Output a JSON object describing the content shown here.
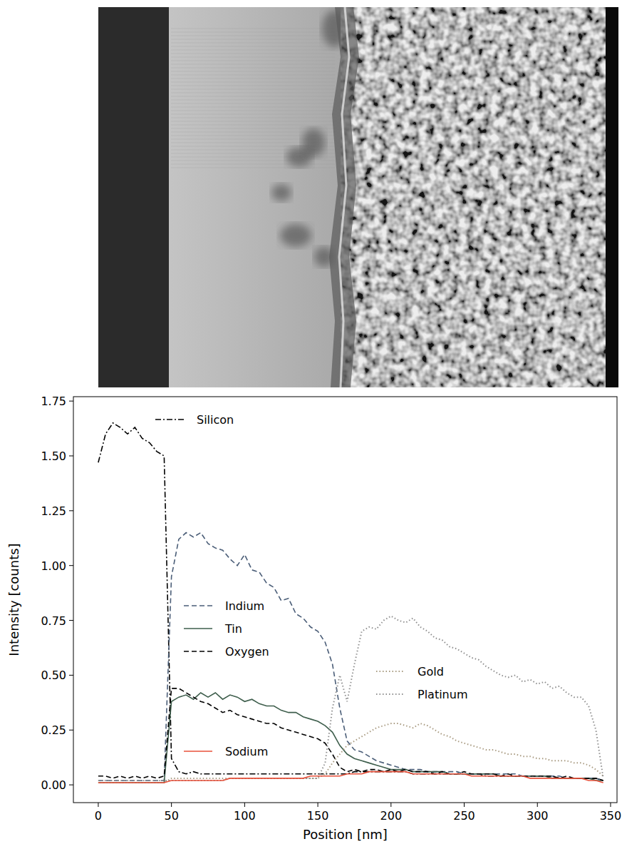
{
  "chart_data": {
    "type": "line",
    "x_label": "Position [nm]",
    "y_label": "Intensity [counts]",
    "xlim": [
      -17,
      354.4
    ],
    "ylim": [
      -0.081,
      1.77
    ],
    "xticks": [
      0,
      50,
      100,
      150,
      200,
      250,
      300,
      350
    ],
    "yticks": [
      {
        "value": 0,
        "label": "0.00"
      },
      {
        "value": 0.25,
        "label": "0.25"
      },
      {
        "value": 0.5,
        "label": "0.50"
      },
      {
        "value": 0.75,
        "label": "0.75"
      },
      {
        "value": 1.0,
        "label": "1.00"
      },
      {
        "value": 1.25,
        "label": "1.25"
      },
      {
        "value": 1.5,
        "label": "1.50"
      },
      {
        "value": 1.75,
        "label": "1.75"
      }
    ],
    "grid": false,
    "legend": "inside",
    "x": [
      0,
      5,
      10,
      15,
      20,
      25,
      30,
      35,
      40,
      45,
      50,
      55,
      60,
      65,
      70,
      75,
      80,
      85,
      90,
      95,
      100,
      105,
      110,
      115,
      120,
      125,
      130,
      135,
      140,
      145,
      150,
      155,
      160,
      165,
      170,
      175,
      180,
      185,
      190,
      195,
      200,
      205,
      210,
      215,
      220,
      225,
      230,
      235,
      240,
      245,
      250,
      255,
      260,
      265,
      270,
      275,
      280,
      285,
      290,
      295,
      300,
      305,
      310,
      315,
      320,
      325,
      330,
      335,
      340,
      345
    ],
    "series": [
      {
        "name": "Silicon",
        "color": "#000000",
        "line_style": "dashdot",
        "values": [
          1.47,
          1.6,
          1.65,
          1.63,
          1.6,
          1.63,
          1.58,
          1.56,
          1.52,
          1.5,
          0.12,
          0.06,
          0.05,
          0.06,
          0.05,
          0.05,
          0.05,
          0.05,
          0.05,
          0.05,
          0.05,
          0.05,
          0.05,
          0.05,
          0.05,
          0.05,
          0.05,
          0.05,
          0.05,
          0.05,
          0.05,
          0.05,
          0.05,
          0.05,
          0.05,
          0.06,
          0.06,
          0.06,
          0.06,
          0.06,
          0.06,
          0.06,
          0.06,
          0.05,
          0.05,
          0.05,
          0.05,
          0.05,
          0.05,
          0.05,
          0.05,
          0.05,
          0.05,
          0.04,
          0.04,
          0.04,
          0.04,
          0.04,
          0.04,
          0.04,
          0.04,
          0.04,
          0.04,
          0.03,
          0.03,
          0.03,
          0.03,
          0.03,
          0.03,
          0.02
        ]
      },
      {
        "name": "Indium",
        "color": "#4b5e78",
        "line_style": "dashed",
        "values": [
          0.02,
          0.02,
          0.02,
          0.02,
          0.02,
          0.02,
          0.02,
          0.02,
          0.02,
          0.02,
          0.95,
          1.12,
          1.15,
          1.13,
          1.15,
          1.1,
          1.08,
          1.07,
          1.03,
          1.0,
          1.05,
          0.98,
          0.97,
          0.92,
          0.9,
          0.84,
          0.85,
          0.78,
          0.76,
          0.72,
          0.7,
          0.65,
          0.55,
          0.35,
          0.2,
          0.16,
          0.15,
          0.13,
          0.11,
          0.1,
          0.09,
          0.08,
          0.07,
          0.07,
          0.07,
          0.06,
          0.06,
          0.06,
          0.06,
          0.06,
          0.05,
          0.05,
          0.05,
          0.05,
          0.05,
          0.05,
          0.05,
          0.05,
          0.04,
          0.04,
          0.04,
          0.04,
          0.04,
          0.04,
          0.03,
          0.03,
          0.03,
          0.03,
          0.03,
          0.02
        ]
      },
      {
        "name": "Tin",
        "color": "#3e5e4c",
        "line_style": "solid",
        "values": [
          0.01,
          0.01,
          0.01,
          0.01,
          0.01,
          0.01,
          0.01,
          0.01,
          0.01,
          0.01,
          0.38,
          0.4,
          0.41,
          0.39,
          0.42,
          0.4,
          0.42,
          0.39,
          0.41,
          0.4,
          0.38,
          0.39,
          0.37,
          0.36,
          0.36,
          0.34,
          0.33,
          0.33,
          0.31,
          0.3,
          0.29,
          0.27,
          0.24,
          0.18,
          0.14,
          0.12,
          0.11,
          0.1,
          0.09,
          0.08,
          0.07,
          0.07,
          0.07,
          0.06,
          0.06,
          0.06,
          0.06,
          0.06,
          0.05,
          0.05,
          0.05,
          0.05,
          0.05,
          0.05,
          0.05,
          0.04,
          0.04,
          0.04,
          0.04,
          0.04,
          0.04,
          0.04,
          0.03,
          0.03,
          0.03,
          0.03,
          0.03,
          0.03,
          0.02,
          0.02
        ]
      },
      {
        "name": "Oxygen",
        "color": "#000000",
        "line_style": "dashed",
        "values": [
          0.04,
          0.04,
          0.03,
          0.04,
          0.03,
          0.04,
          0.03,
          0.04,
          0.03,
          0.04,
          0.44,
          0.44,
          0.42,
          0.4,
          0.38,
          0.37,
          0.35,
          0.33,
          0.34,
          0.32,
          0.31,
          0.3,
          0.29,
          0.28,
          0.28,
          0.26,
          0.25,
          0.24,
          0.23,
          0.22,
          0.21,
          0.19,
          0.14,
          0.08,
          0.06,
          0.07,
          0.06,
          0.07,
          0.07,
          0.06,
          0.07,
          0.06,
          0.07,
          0.06,
          0.06,
          0.06,
          0.05,
          0.06,
          0.05,
          0.05,
          0.06,
          0.05,
          0.05,
          0.05,
          0.05,
          0.04,
          0.05,
          0.04,
          0.04,
          0.04,
          0.04,
          0.04,
          0.04,
          0.03,
          0.04,
          0.03,
          0.03,
          0.03,
          0.03,
          0.02
        ]
      },
      {
        "name": "Gold",
        "color": "#a89a80",
        "line_style": "dotted",
        "values": [
          0.01,
          0.01,
          0.01,
          0.01,
          0.01,
          0.01,
          0.01,
          0.01,
          0.01,
          0.01,
          0.03,
          0.03,
          0.03,
          0.03,
          0.03,
          0.03,
          0.03,
          0.03,
          0.03,
          0.03,
          0.03,
          0.03,
          0.03,
          0.03,
          0.03,
          0.03,
          0.03,
          0.03,
          0.03,
          0.03,
          0.03,
          0.05,
          0.1,
          0.14,
          0.18,
          0.2,
          0.22,
          0.24,
          0.26,
          0.27,
          0.28,
          0.28,
          0.27,
          0.26,
          0.28,
          0.27,
          0.25,
          0.23,
          0.22,
          0.2,
          0.19,
          0.18,
          0.17,
          0.16,
          0.16,
          0.15,
          0.14,
          0.14,
          0.13,
          0.13,
          0.12,
          0.12,
          0.11,
          0.11,
          0.11,
          0.1,
          0.1,
          0.09,
          0.07,
          0.04
        ]
      },
      {
        "name": "Platinum",
        "color": "#8f8f8f",
        "line_style": "dotted",
        "values": [
          0.02,
          0.02,
          0.02,
          0.02,
          0.02,
          0.02,
          0.02,
          0.02,
          0.02,
          0.02,
          0.02,
          0.02,
          0.02,
          0.02,
          0.02,
          0.02,
          0.02,
          0.02,
          0.03,
          0.03,
          0.03,
          0.03,
          0.03,
          0.03,
          0.03,
          0.03,
          0.03,
          0.03,
          0.03,
          0.03,
          0.03,
          0.1,
          0.35,
          0.5,
          0.38,
          0.55,
          0.7,
          0.72,
          0.71,
          0.75,
          0.77,
          0.75,
          0.74,
          0.76,
          0.72,
          0.7,
          0.67,
          0.66,
          0.63,
          0.62,
          0.6,
          0.58,
          0.57,
          0.54,
          0.52,
          0.5,
          0.49,
          0.5,
          0.47,
          0.48,
          0.46,
          0.47,
          0.44,
          0.45,
          0.42,
          0.4,
          0.4,
          0.36,
          0.25,
          0.03
        ]
      },
      {
        "name": "Sodium",
        "color": "#e8503a",
        "line_style": "solid",
        "values": [
          0.01,
          0.01,
          0.01,
          0.01,
          0.01,
          0.01,
          0.01,
          0.01,
          0.01,
          0.01,
          0.02,
          0.02,
          0.02,
          0.02,
          0.02,
          0.02,
          0.02,
          0.02,
          0.03,
          0.03,
          0.03,
          0.03,
          0.03,
          0.03,
          0.03,
          0.03,
          0.03,
          0.03,
          0.03,
          0.04,
          0.04,
          0.04,
          0.04,
          0.04,
          0.05,
          0.05,
          0.05,
          0.06,
          0.06,
          0.06,
          0.06,
          0.06,
          0.06,
          0.05,
          0.05,
          0.05,
          0.05,
          0.05,
          0.05,
          0.05,
          0.05,
          0.04,
          0.04,
          0.04,
          0.04,
          0.04,
          0.04,
          0.04,
          0.04,
          0.03,
          0.03,
          0.03,
          0.03,
          0.03,
          0.03,
          0.03,
          0.03,
          0.02,
          0.02,
          0.01
        ]
      }
    ]
  }
}
